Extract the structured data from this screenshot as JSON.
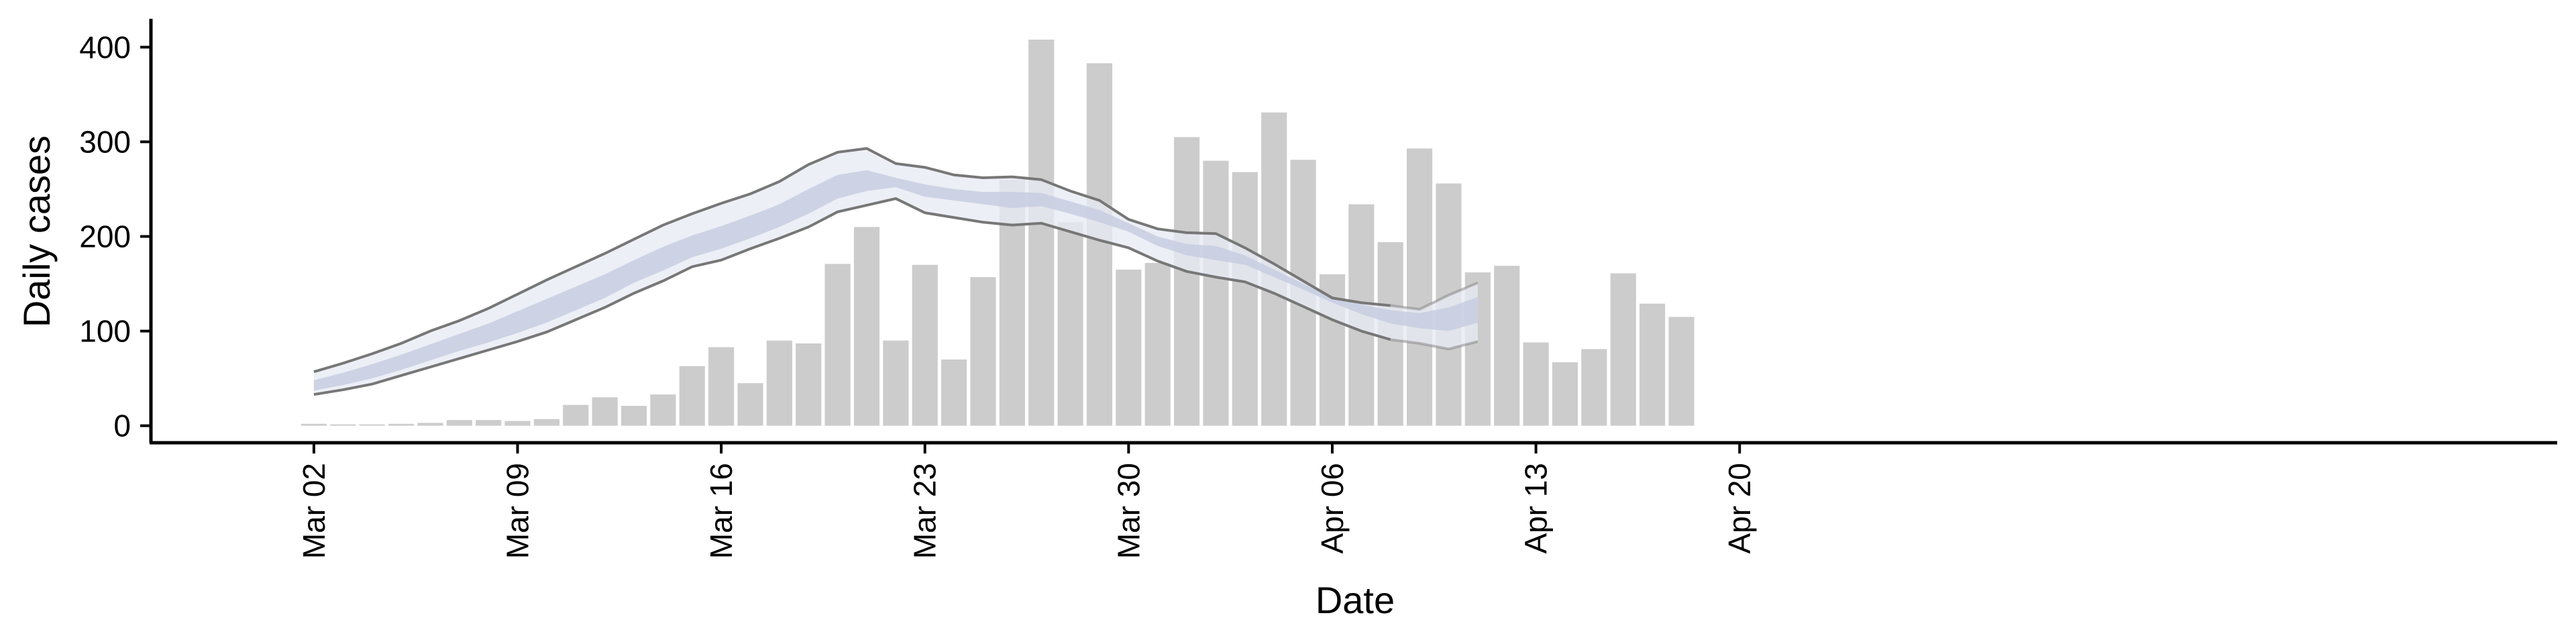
{
  "chart_data": {
    "type": "bar",
    "title": "",
    "xlabel": "Date",
    "ylabel": "Daily cases",
    "ylim": [
      -18,
      430
    ],
    "yticks": [
      0,
      100,
      200,
      300,
      400
    ],
    "xlim": [
      -5.6,
      77.1
    ],
    "xticks": [
      {
        "day": 0,
        "label": "Mar 02"
      },
      {
        "day": 7,
        "label": "Mar 09"
      },
      {
        "day": 14,
        "label": "Mar 16"
      },
      {
        "day": 21,
        "label": "Mar 23"
      },
      {
        "day": 28,
        "label": "Mar 30"
      },
      {
        "day": 35,
        "label": "Apr 06"
      },
      {
        "day": 42,
        "label": "Apr 13"
      },
      {
        "day": 49,
        "label": "Apr 20"
      }
    ],
    "grid": false,
    "legend": "none",
    "bar_series": {
      "name": "Daily cases",
      "start_day": 0,
      "values": [
        2,
        1,
        0,
        2,
        3,
        6,
        6,
        5,
        7,
        22,
        30,
        21,
        33,
        63,
        83,
        45,
        90,
        87,
        171,
        210,
        90,
        170,
        70,
        157,
        260,
        408,
        215,
        383,
        165,
        172,
        305,
        280,
        268,
        331,
        281,
        160,
        234,
        194,
        293,
        256,
        162,
        169,
        88,
        67,
        81,
        161,
        129,
        115
      ],
      "color": "#cccccc"
    },
    "estimate_series": {
      "name": "Estimated cases",
      "start_day": 0,
      "outer_lower": [
        33,
        38,
        44,
        53,
        62,
        71,
        80,
        89,
        99,
        112,
        125,
        140,
        153,
        168,
        175,
        187,
        198,
        210,
        226,
        233,
        240,
        225,
        220,
        215,
        212,
        214,
        205,
        196,
        188,
        174,
        163,
        157,
        152,
        140,
        126,
        112,
        100,
        91,
        87,
        81,
        89
      ],
      "outer_upper": [
        57,
        66,
        76,
        87,
        100,
        111,
        124,
        139,
        154,
        168,
        182,
        197,
        212,
        224,
        235,
        245,
        258,
        276,
        289,
        293,
        277,
        273,
        265,
        262,
        263,
        260,
        248,
        238,
        218,
        208,
        204,
        203,
        188,
        171,
        153,
        135,
        130,
        127,
        123,
        138,
        151
      ],
      "inner_lower": [
        37,
        43,
        50,
        59,
        69,
        79,
        88,
        98,
        109,
        122,
        135,
        151,
        164,
        178,
        187,
        198,
        210,
        224,
        240,
        248,
        252,
        242,
        238,
        234,
        230,
        232,
        224,
        215,
        205,
        190,
        180,
        175,
        170,
        157,
        144,
        130,
        118,
        108,
        103,
        100,
        109
      ],
      "inner_upper": [
        48,
        56,
        65,
        75,
        86,
        97,
        108,
        121,
        134,
        147,
        160,
        175,
        189,
        201,
        211,
        222,
        234,
        250,
        265,
        270,
        262,
        255,
        250,
        247,
        247,
        246,
        237,
        228,
        214,
        200,
        192,
        190,
        180,
        165,
        150,
        135,
        128,
        122,
        119,
        125,
        136
      ],
      "outer_color": "#e8eaf3",
      "inner_color": "#c6cde0",
      "boundary_color": "#777777",
      "last_uncertain_days": 3
    }
  }
}
